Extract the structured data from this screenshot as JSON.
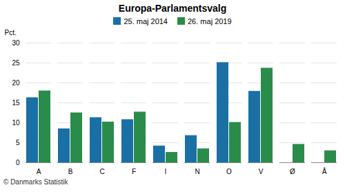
{
  "chart_data": {
    "type": "bar",
    "title": "Europa-Parlamentsvalg",
    "ylabel": "Pct.",
    "caption": "© Danmarks Statistik",
    "categories": [
      "A",
      "B",
      "C",
      "F",
      "I",
      "N",
      "O",
      "V",
      "Ø",
      "Å"
    ],
    "series": [
      {
        "name": "25. maj 2014",
        "color": "#1a6fa5",
        "values": [
          16.3,
          8.5,
          11.3,
          10.8,
          4.2,
          6.8,
          25.1,
          17.9,
          0.0,
          0.0
        ]
      },
      {
        "name": "26. maj 2019",
        "color": "#2a8c4a",
        "values": [
          18.0,
          12.5,
          10.2,
          12.7,
          2.6,
          3.5,
          10.1,
          23.7,
          4.6,
          3.0
        ]
      }
    ],
    "ylim": [
      0,
      30
    ],
    "yticks": [
      0,
      5,
      10,
      15,
      20,
      25,
      30
    ],
    "grid": true,
    "legend": "top"
  }
}
